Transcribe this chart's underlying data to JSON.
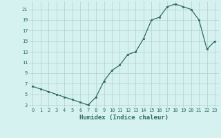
{
  "x": [
    0,
    1,
    2,
    3,
    4,
    5,
    6,
    7,
    8,
    9,
    10,
    11,
    12,
    13,
    14,
    15,
    16,
    17,
    18,
    19,
    20,
    21,
    22,
    23
  ],
  "y": [
    6.5,
    6.0,
    5.5,
    5.0,
    4.5,
    4.0,
    3.5,
    3.0,
    4.5,
    7.5,
    9.5,
    10.5,
    12.5,
    13.0,
    15.5,
    19.0,
    19.5,
    21.5,
    22.0,
    21.5,
    21.0,
    19.0,
    13.5,
    15.0
  ],
  "xlabel": "Humidex (Indice chaleur)",
  "ylim_min": 2.5,
  "ylim_max": 22.5,
  "xlim_min": -0.5,
  "xlim_max": 23.5,
  "yticks": [
    3,
    5,
    7,
    9,
    11,
    13,
    15,
    17,
    19,
    21
  ],
  "xticks": [
    0,
    1,
    2,
    3,
    4,
    5,
    6,
    7,
    8,
    9,
    10,
    11,
    12,
    13,
    14,
    15,
    16,
    17,
    18,
    19,
    20,
    21,
    22,
    23
  ],
  "line_color": "#2e6b60",
  "marker_color": "#2e6b60",
  "bg_color": "#d5f2f0",
  "grid_color": "#b2cece",
  "tick_color": "#2e6b60",
  "xlabel_color": "#2e6b60"
}
